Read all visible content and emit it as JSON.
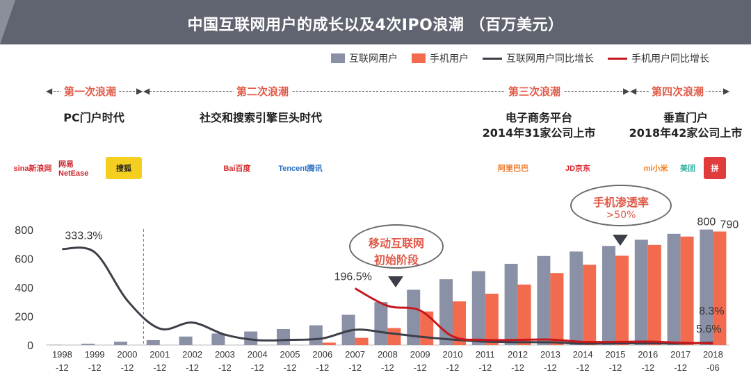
{
  "title": "中国互联网用户的成长以及4次IPO浪潮 （百万美元）",
  "legend": {
    "internet_users": "互联网用户",
    "mobile_users": "手机用户",
    "internet_growth": "互联网用户同比增长",
    "mobile_growth": "手机用户同比增长"
  },
  "waves": [
    {
      "label": "第一次浪潮",
      "era": "PC门户时代",
      "era_line2": ""
    },
    {
      "label": "第二次浪潮",
      "era": "社交和搜索引擎巨头时代",
      "era_line2": ""
    },
    {
      "label": "第三次浪潮",
      "era": "电子商务平台",
      "era_line2": "2014年31家公司上市"
    },
    {
      "label": "第四次浪潮",
      "era": "垂直门户",
      "era_line2": "2018年42家公司上市"
    }
  ],
  "logos": [
    {
      "name": "sina-logo",
      "text": "sina新浪网",
      "color": "#d8262a",
      "bg": "#ffffff"
    },
    {
      "name": "netease-logo",
      "text": "网易 NetEase",
      "color": "#c9232a",
      "bg": "#ffffff"
    },
    {
      "name": "sohu-logo",
      "text": "搜狐",
      "color": "#222222",
      "bg": "#f4cf1f"
    },
    {
      "name": "baidu-logo",
      "text": "Bai百度",
      "color": "#d12a2a",
      "bg": "#ffffff"
    },
    {
      "name": "tencent-logo",
      "text": "Tencent腾讯",
      "color": "#2a6fc2",
      "bg": "#ffffff"
    },
    {
      "name": "alibaba-logo",
      "text": "阿里巴巴",
      "color": "#f0731f",
      "bg": "#ffffff"
    },
    {
      "name": "jd-logo",
      "text": "JD京东",
      "color": "#d9232a",
      "bg": "#ffffff"
    },
    {
      "name": "xiaomi-logo",
      "text": "mi小米",
      "color": "#f07a1a",
      "bg": "#ffffff"
    },
    {
      "name": "meituan-logo",
      "text": "美团",
      "color": "#2fb2a3",
      "bg": "#ffffff"
    },
    {
      "name": "pinduoduo-logo",
      "text": "拼",
      "color": "#ffffff",
      "bg": "#e13c3c"
    }
  ],
  "annotations": {
    "mobile_start": {
      "line1": "移动互联网",
      "line2": "初始阶段"
    },
    "mobile_penetration": {
      "line1": "手机渗透率",
      "line2": ">50%"
    }
  },
  "chart_data": {
    "type": "bar",
    "categories": [
      "1998\n-12",
      "1999\n-12",
      "2000\n-12",
      "2001\n-12",
      "2002\n-12",
      "2003\n-12",
      "2004\n-12",
      "2005\n-12",
      "2006\n-12",
      "2007\n-12",
      "2008\n-12",
      "2009\n-12",
      "2010\n-12",
      "2011\n-12",
      "2012\n-12",
      "2013\n-12",
      "2014\n-12",
      "2015\n-12",
      "2016\n-12",
      "2017\n-12",
      "2018\n-06"
    ],
    "series": [
      {
        "name": "互联网用户",
        "type": "bar",
        "color": "#8a90a6",
        "values": [
          2,
          9,
          23,
          34,
          59,
          80,
          94,
          111,
          137,
          210,
          298,
          384,
          457,
          513,
          564,
          618,
          649,
          688,
          731,
          772,
          802
        ]
      },
      {
        "name": "手机用户",
        "type": "bar",
        "color": "#f26b4f",
        "values": [
          0,
          0,
          0,
          0,
          0,
          0,
          0,
          0,
          17,
          50,
          118,
          233,
          303,
          356,
          420,
          500,
          557,
          620,
          695,
          753,
          788
        ]
      },
      {
        "name": "互联网用户同比增长",
        "type": "line",
        "color": "#3c3f48",
        "values": [
          333.3,
          322,
          155,
          57,
          78,
          36,
          17,
          18,
          23,
          53,
          42,
          29,
          19,
          12,
          10,
          9.5,
          5,
          6,
          6.2,
          5.6,
          8.3
        ]
      },
      {
        "name": "手机用户同比增长",
        "type": "line",
        "color": "#c8161d",
        "values": [
          null,
          null,
          null,
          null,
          null,
          null,
          null,
          null,
          null,
          196.5,
          136,
          120,
          30,
          18,
          18,
          19,
          11,
          11,
          12,
          8,
          5.6
        ]
      }
    ],
    "ylim": [
      0,
      800
    ],
    "yticks": [
      0,
      200,
      400,
      600,
      800
    ],
    "data_labels": [
      {
        "text": "333.3%"
      },
      {
        "text": "196.5%"
      },
      {
        "text": "800"
      },
      {
        "text": "790"
      },
      {
        "text": "8.3%"
      },
      {
        "text": "5.6%"
      }
    ]
  }
}
